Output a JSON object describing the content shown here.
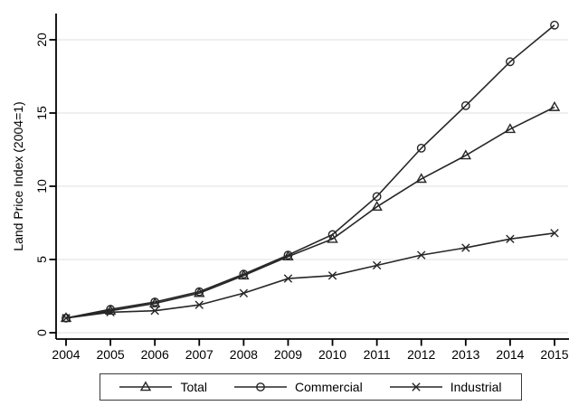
{
  "figure": {
    "background": "#ffffff",
    "line_color": "#262626",
    "axis_color": "#000000",
    "grid_color": "#eaeaea",
    "text_color": "#000000"
  },
  "chart_data": {
    "type": "line",
    "title": "",
    "xlabel": "",
    "ylabel": "Land Price Index (2004=1)",
    "x": [
      2004,
      2005,
      2006,
      2007,
      2008,
      2009,
      2010,
      2011,
      2012,
      2013,
      2014,
      2015
    ],
    "x_tick_labels": [
      "2004",
      "2005",
      "2006",
      "2007",
      "2008",
      "2009",
      "2010",
      "2011",
      "2012",
      "2013",
      "2014",
      "2015"
    ],
    "yticks": [
      0,
      5,
      10,
      15,
      20
    ],
    "ylim": [
      0,
      21.8
    ],
    "grid": "horizontal",
    "legend_position": "bottom-center-boxed",
    "series": [
      {
        "name": "Total",
        "marker": "triangle",
        "values": [
          1.0,
          1.5,
          2.0,
          2.7,
          3.9,
          5.2,
          6.4,
          8.6,
          10.5,
          12.1,
          13.9,
          15.4
        ]
      },
      {
        "name": "Commercial",
        "marker": "circle",
        "values": [
          1.0,
          1.6,
          2.1,
          2.8,
          4.0,
          5.3,
          6.7,
          9.3,
          12.6,
          15.5,
          18.5,
          21.0
        ]
      },
      {
        "name": "Industrial",
        "marker": "x",
        "values": [
          1.0,
          1.4,
          1.5,
          1.9,
          2.7,
          3.7,
          3.9,
          4.6,
          5.3,
          5.8,
          6.4,
          6.8
        ]
      }
    ]
  }
}
